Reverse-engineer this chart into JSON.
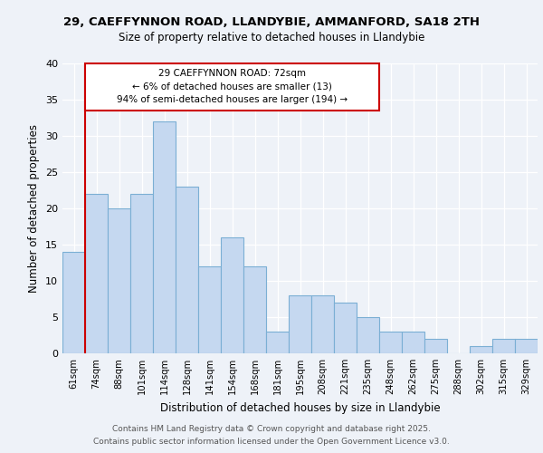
{
  "title_line1": "29, CAEFFYNNON ROAD, LLANDYBIE, AMMANFORD, SA18 2TH",
  "title_line2": "Size of property relative to detached houses in Llandybie",
  "xlabel": "Distribution of detached houses by size in Llandybie",
  "ylabel": "Number of detached properties",
  "categories": [
    "61sqm",
    "74sqm",
    "88sqm",
    "101sqm",
    "114sqm",
    "128sqm",
    "141sqm",
    "154sqm",
    "168sqm",
    "181sqm",
    "195sqm",
    "208sqm",
    "221sqm",
    "235sqm",
    "248sqm",
    "262sqm",
    "275sqm",
    "288sqm",
    "302sqm",
    "315sqm",
    "329sqm"
  ],
  "values": [
    14,
    22,
    20,
    22,
    32,
    23,
    12,
    16,
    12,
    3,
    8,
    8,
    7,
    5,
    3,
    3,
    2,
    0,
    1,
    2,
    2
  ],
  "bar_color": "#c5d8f0",
  "bar_edge_color": "#7bafd4",
  "annotation_border_color": "#cc0000",
  "vline_color": "#cc0000",
  "annotation_text_line1": "29 CAEFFYNNON ROAD: 72sqm",
  "annotation_text_line2": "← 6% of detached houses are smaller (13)",
  "annotation_text_line3": "94% of semi-detached houses are larger (194) →",
  "ylim": [
    0,
    40
  ],
  "yticks": [
    0,
    5,
    10,
    15,
    20,
    25,
    30,
    35,
    40
  ],
  "footnote1": "Contains HM Land Registry data © Crown copyright and database right 2025.",
  "footnote2": "Contains public sector information licensed under the Open Government Licence v3.0.",
  "background_color": "#eef2f8",
  "plot_bg_color": "#eef2f8"
}
